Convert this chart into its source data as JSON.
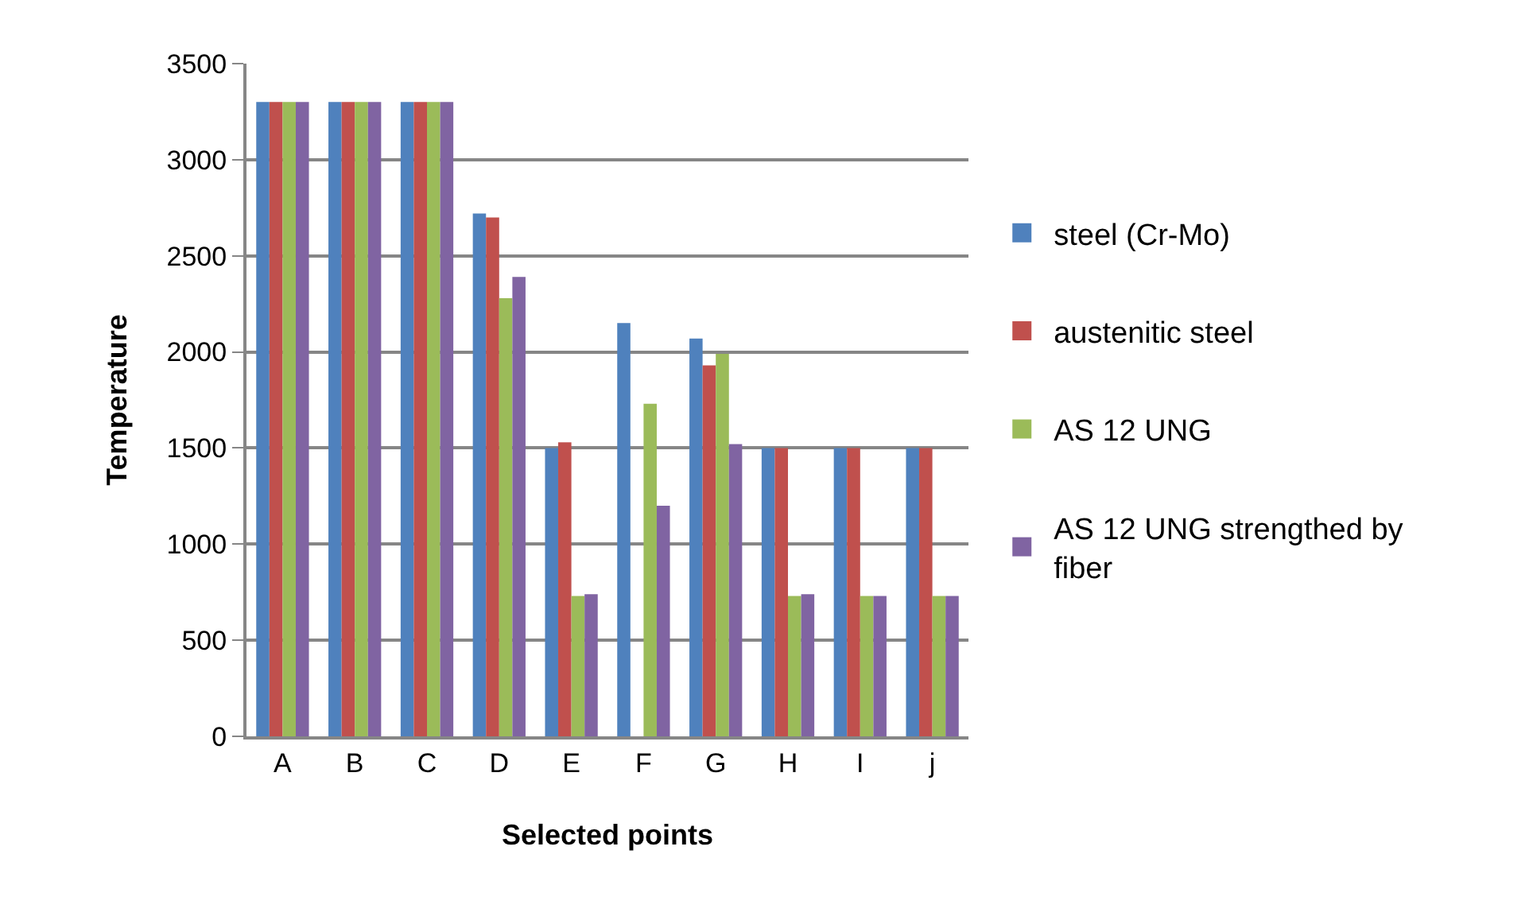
{
  "chart_data": {
    "type": "bar",
    "xlabel": "Selected points",
    "ylabel": "Temperature",
    "categories": [
      "A",
      "B",
      "C",
      "D",
      "E",
      "F",
      "G",
      "H",
      "I",
      "j"
    ],
    "series": [
      {
        "name": "steel (Cr-Mo)",
        "color": "#4f81bd",
        "values": [
          3300,
          3300,
          3300,
          2720,
          1500,
          2150,
          2070,
          1500,
          1500,
          1500
        ]
      },
      {
        "name": "austenitic steel",
        "color": "#c0504d",
        "values": [
          3300,
          3300,
          3300,
          2700,
          1530,
          null,
          1930,
          1500,
          1500,
          1500
        ]
      },
      {
        "name": "AS 12 UNG",
        "color": "#9bbb59",
        "values": [
          3300,
          3300,
          3300,
          2280,
          730,
          1730,
          1990,
          730,
          730,
          730
        ]
      },
      {
        "name": "AS 12 UNG strengthed by fiber",
        "color": "#8064a2",
        "values": [
          3300,
          3300,
          3300,
          2390,
          740,
          1200,
          1520,
          740,
          730,
          730
        ]
      }
    ],
    "ylim": [
      0,
      3500
    ],
    "yticks": [
      0,
      500,
      1000,
      1500,
      2000,
      2500,
      3000,
      3500
    ],
    "grid": "y",
    "legend": "right"
  }
}
